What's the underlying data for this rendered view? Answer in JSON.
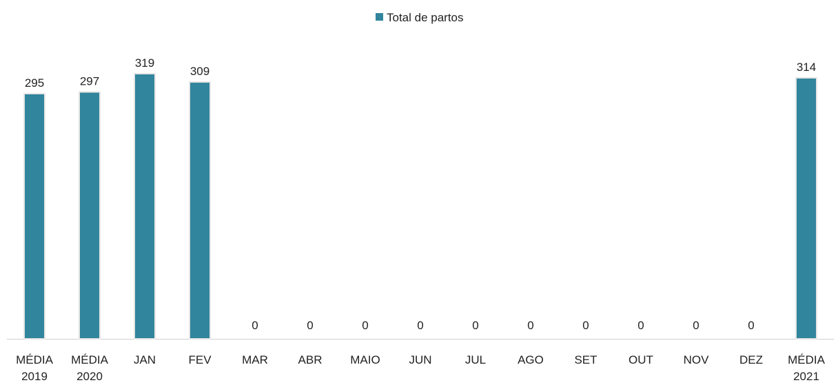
{
  "chart_data": {
    "type": "bar",
    "categories": [
      [
        "MÉDIA",
        "2019"
      ],
      [
        "MÉDIA",
        "2020"
      ],
      [
        "JAN"
      ],
      [
        "FEV"
      ],
      [
        "MAR"
      ],
      [
        "ABR"
      ],
      [
        "MAIO"
      ],
      [
        "JUN"
      ],
      [
        "JUL"
      ],
      [
        "AGO"
      ],
      [
        "SET"
      ],
      [
        "OUT"
      ],
      [
        "NOV"
      ],
      [
        "DEZ"
      ],
      [
        "MÉDIA",
        "2021"
      ]
    ],
    "series": [
      {
        "name": "Total de partos",
        "color": "#31859C",
        "values": [
          295,
          297,
          319,
          309,
          0,
          0,
          0,
          0,
          0,
          0,
          0,
          0,
          0,
          0,
          314
        ]
      }
    ],
    "data_labels": true,
    "legend": "top-center",
    "grid": false,
    "ylim": [
      0,
      319
    ]
  }
}
